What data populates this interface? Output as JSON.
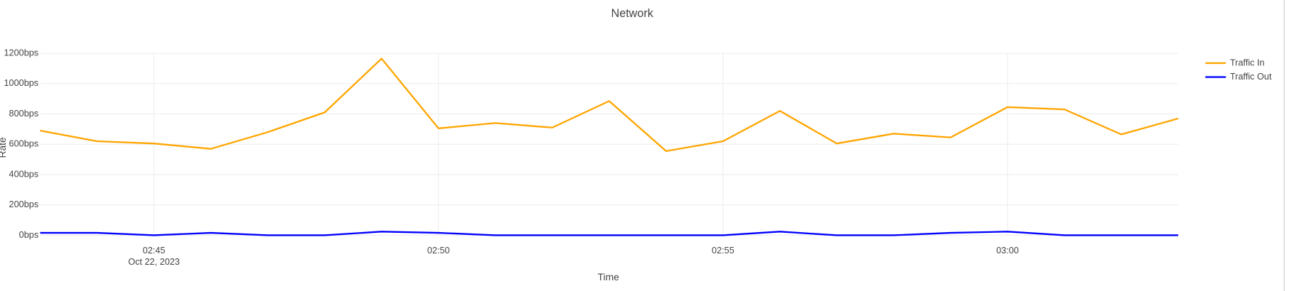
{
  "chart_data": {
    "type": "line",
    "title": "Network",
    "x_label": "Time",
    "y_label": "Rate",
    "x": [
      "2023-10-22 02:43",
      "2023-10-22 02:44",
      "2023-10-22 02:45",
      "2023-10-22 02:46",
      "2023-10-22 02:47",
      "2023-10-22 02:48",
      "2023-10-22 02:49",
      "2023-10-22 02:50",
      "2023-10-22 02:51",
      "2023-10-22 02:52",
      "2023-10-22 02:53",
      "2023-10-22 02:54",
      "2023-10-22 02:55",
      "2023-10-22 02:56",
      "2023-10-22 02:57",
      "2023-10-22 02:58",
      "2023-10-22 02:59",
      "2023-10-22 03:00",
      "2023-10-22 03:01",
      "2023-10-22 03:02",
      "2023-10-22 03:03"
    ],
    "series": [
      {
        "name": "Traffic In",
        "color": "#ffa500",
        "values": [
          690,
          620,
          605,
          570,
          680,
          810,
          1165,
          705,
          740,
          710,
          885,
          555,
          620,
          820,
          605,
          670,
          645,
          845,
          830,
          665,
          770
        ]
      },
      {
        "name": "Traffic Out",
        "color": "#0000ff",
        "values": [
          16,
          16,
          0,
          16,
          0,
          0,
          24,
          16,
          0,
          0,
          0,
          0,
          0,
          24,
          0,
          0,
          16,
          24,
          0,
          0,
          0
        ]
      }
    ],
    "xlim": [
      "2023-10-22 02:43",
      "2023-10-22 03:03"
    ],
    "xticks": [
      {
        "value": "2023-10-22 02:45",
        "label": "02:45"
      },
      {
        "value": "2023-10-22 02:50",
        "label": "02:50"
      },
      {
        "value": "2023-10-22 02:55",
        "label": "02:55"
      },
      {
        "value": "2023-10-22 03:00",
        "label": "03:00"
      }
    ],
    "xtick_date_label": "Oct 22, 2023",
    "ylim": [
      0,
      1200
    ],
    "yticks": [
      {
        "value": 0,
        "label": "0bps"
      },
      {
        "value": 200,
        "label": "200bps"
      },
      {
        "value": 400,
        "label": "400bps"
      },
      {
        "value": 600,
        "label": "600bps"
      },
      {
        "value": 800,
        "label": "800bps"
      },
      {
        "value": 1000,
        "label": "1000bps"
      },
      {
        "value": 1200,
        "label": "1200bps"
      }
    ],
    "grid": true,
    "legend": "top-right"
  }
}
